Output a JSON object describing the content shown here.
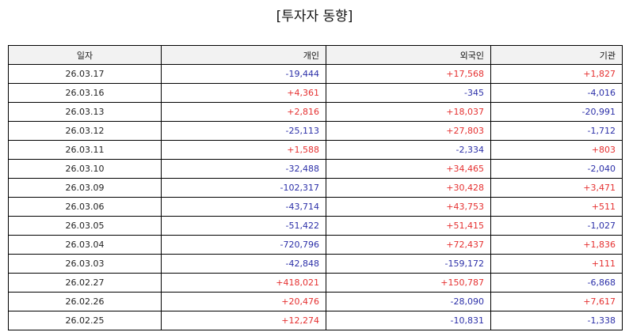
{
  "title": "[투자자 동향]",
  "colors": {
    "positive": "#e53030",
    "negative": "#2b2fa8",
    "header_bg": "#f2f2f2"
  },
  "table": {
    "headers": [
      "일자",
      "개인",
      "외국인",
      "기관"
    ],
    "rows": [
      [
        "26.03.17",
        "-19,444",
        "+17,568",
        "+1,827"
      ],
      [
        "26.03.16",
        "+4,361",
        "-345",
        "-4,016"
      ],
      [
        "26.03.13",
        "+2,816",
        "+18,037",
        "-20,991"
      ],
      [
        "26.03.12",
        "-25,113",
        "+27,803",
        "-1,712"
      ],
      [
        "26.03.11",
        "+1,588",
        "-2,334",
        "+803"
      ],
      [
        "26.03.10",
        "-32,488",
        "+34,465",
        "-2,040"
      ],
      [
        "26.03.09",
        "-102,317",
        "+30,428",
        "+3,471"
      ],
      [
        "26.03.06",
        "-43,714",
        "+43,753",
        "+511"
      ],
      [
        "26.03.05",
        "-51,422",
        "+51,415",
        "-1,027"
      ],
      [
        "26.03.04",
        "-720,796",
        "+72,437",
        "+1,836"
      ],
      [
        "26.03.03",
        "-42,848",
        "-159,172",
        "+111"
      ],
      [
        "26.02.27",
        "+418,021",
        "+150,787",
        "-6,868"
      ],
      [
        "26.02.26",
        "+20,476",
        "-28,090",
        "+7,617"
      ],
      [
        "26.02.25",
        "+12,274",
        "-10,831",
        "-1,338"
      ]
    ]
  }
}
